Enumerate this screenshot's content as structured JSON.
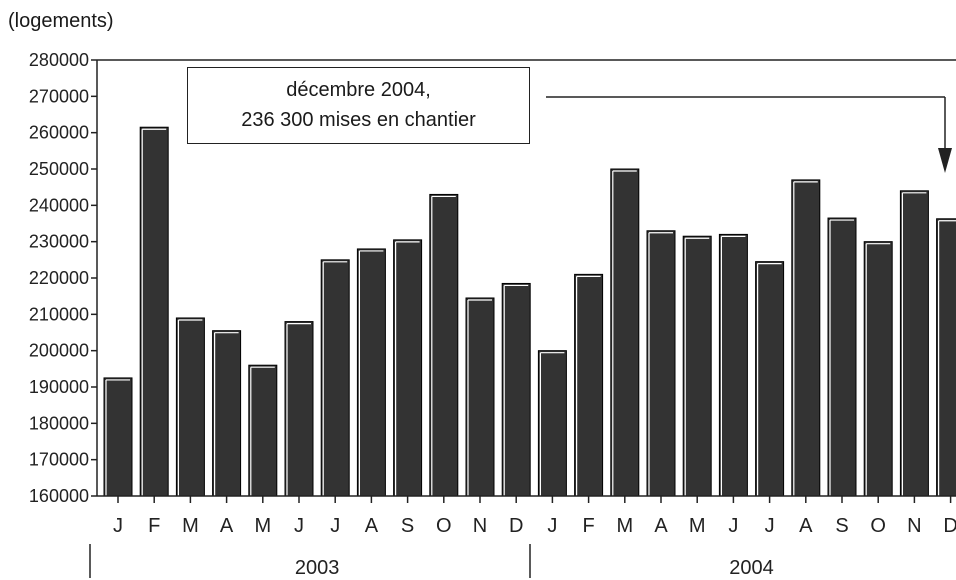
{
  "chart_data": {
    "type": "bar",
    "ylabel": "(logements)",
    "ylim": [
      160000,
      280000
    ],
    "yticks": [
      160000,
      170000,
      180000,
      190000,
      200000,
      210000,
      220000,
      230000,
      240000,
      250000,
      260000,
      270000,
      280000
    ],
    "categories": [
      "J",
      "F",
      "M",
      "A",
      "M",
      "J",
      "J",
      "A",
      "S",
      "O",
      "N",
      "D",
      "J",
      "F",
      "M",
      "A",
      "M",
      "J",
      "J",
      "A",
      "S",
      "O",
      "N",
      "D"
    ],
    "years": [
      {
        "label": "2003",
        "start": 0,
        "end": 11
      },
      {
        "label": "2004",
        "start": 12,
        "end": 23
      }
    ],
    "values": [
      192500,
      261500,
      209000,
      205500,
      196000,
      208000,
      225000,
      228000,
      230500,
      243000,
      214500,
      218500,
      200000,
      221000,
      250000,
      233000,
      231500,
      232000,
      224500,
      247000,
      236500,
      230000,
      244000,
      236300
    ],
    "annotation": {
      "line1": "décembre 2004,",
      "line2": "236 300 mises en chantier"
    },
    "colors": {
      "bar": "#333333",
      "axis": "#222222"
    },
    "grid": false
  }
}
